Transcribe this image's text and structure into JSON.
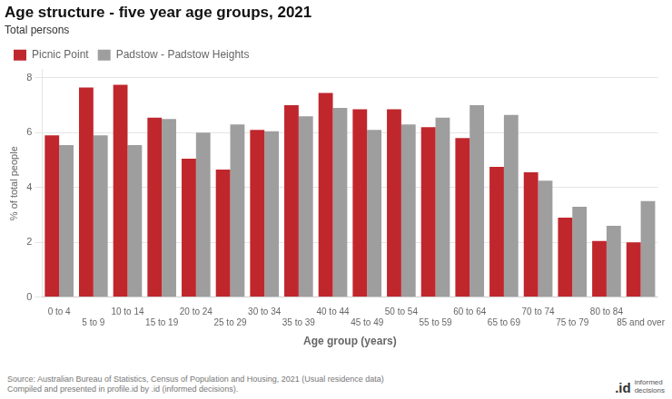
{
  "chart_data": {
    "type": "bar",
    "title": "Age structure - five year age groups, 2021",
    "subtitle": "Total persons",
    "ylabel": "% of total people",
    "xlabel": "Age group (years)",
    "categories": [
      "0 to 4",
      "5 to 9",
      "10 to 14",
      "15 to 19",
      "20 to 24",
      "25 to 29",
      "30 to 34",
      "35 to 39",
      "40 to 44",
      "45 to 49",
      "50 to 54",
      "55 to 59",
      "60 to 64",
      "65 to 69",
      "70 to 74",
      "75 to 79",
      "80 to 84",
      "85 and over"
    ],
    "series": [
      {
        "name": "Picnic Point",
        "color": "#C0272D",
        "values": [
          5.9,
          7.65,
          7.75,
          6.55,
          5.05,
          4.65,
          6.1,
          7.0,
          7.45,
          6.85,
          6.85,
          6.2,
          5.8,
          4.75,
          4.55,
          2.9,
          2.05,
          2.0
        ]
      },
      {
        "name": "Padstow - Padstow Heights",
        "color": "#9E9E9E",
        "values": [
          5.55,
          5.9,
          5.55,
          6.5,
          6.0,
          6.3,
          6.05,
          6.6,
          6.9,
          6.1,
          6.3,
          6.55,
          7.0,
          6.65,
          4.25,
          3.3,
          2.6,
          3.5
        ]
      }
    ],
    "ylim": [
      0,
      8.3
    ],
    "yticks": [
      0,
      2,
      4,
      6,
      8
    ],
    "grid": true,
    "legend": "upper left",
    "annotations": [
      "Source: Australian Bureau of Statistics, Census of Population and Housing, 2021 (Usual residence data)\nCompiled and presented in profile.id by .id (informed decisions).",
      ".id",
      "informed\ndecisions"
    ]
  }
}
